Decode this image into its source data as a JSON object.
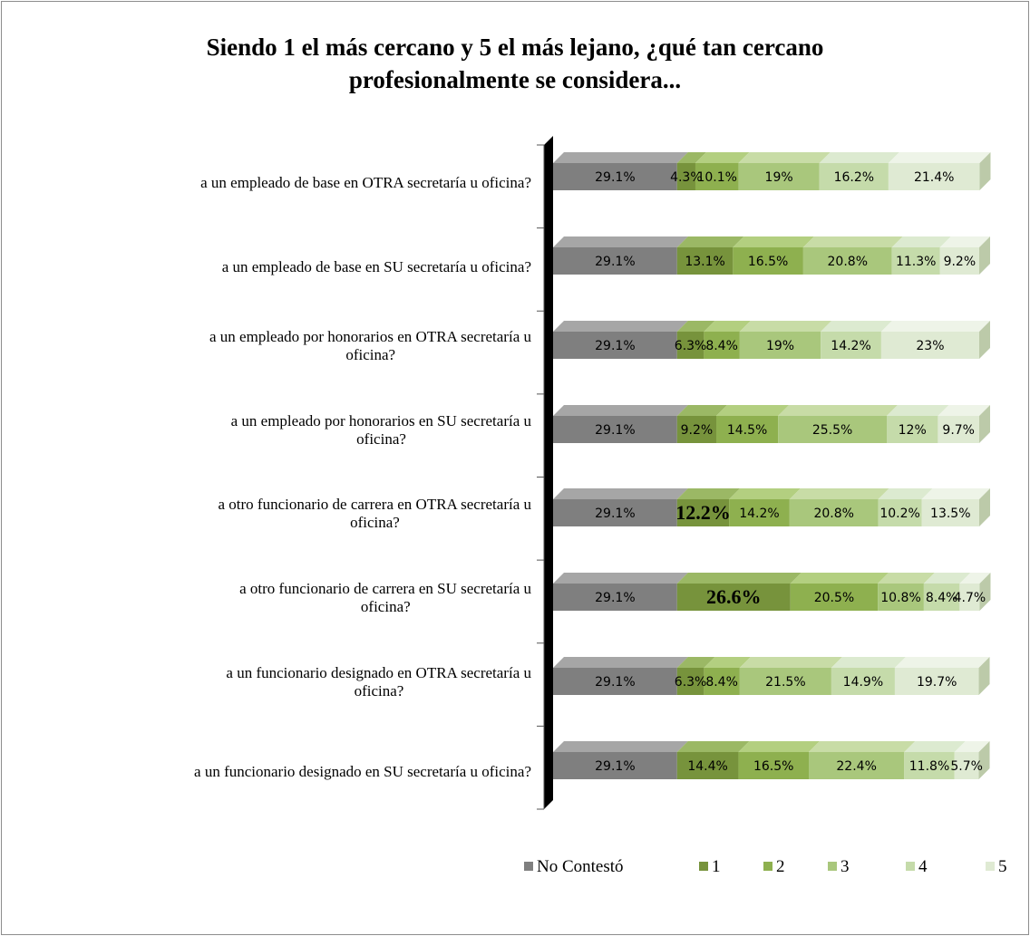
{
  "chart_data": {
    "type": "bar",
    "orientation": "horizontal",
    "stacked": true,
    "title": [
      "Siendo 1 el más cercano y 5 el más lejano, ¿qué tan cercano",
      "profesionalmente se considera..."
    ],
    "xlim": [
      0,
      100
    ],
    "unit": "%",
    "legend_position": "bottom",
    "categories": [
      "a un empleado de base en OTRA secretaría u oficina?",
      "a un empleado de base en SU secretaría u oficina?",
      "a un empleado por honorarios en OTRA secretaría u oficina?",
      "a un empleado por honorarios en SU secretaría u oficina?",
      "a otro funcionario de carrera en OTRA secretaría u oficina?",
      "a otro funcionario de carrera en SU secretaría u oficina?",
      "a un funcionario designado en OTRA secretaría u oficina?",
      "a un funcionario designado en SU secretaría u oficina?"
    ],
    "category_lines": [
      [
        "a un empleado de base en OTRA secretaría u oficina?"
      ],
      [
        "a un empleado de base en SU secretaría u oficina?"
      ],
      [
        "a un empleado por honorarios en OTRA secretaría u",
        "oficina?"
      ],
      [
        "a un empleado por honorarios en SU secretaría u",
        "oficina?"
      ],
      [
        "a otro funcionario de carrera en OTRA secretaría u",
        "oficina?"
      ],
      [
        "a otro funcionario de carrera en SU secretaría u",
        "oficina?"
      ],
      [
        "a un funcionario designado en OTRA secretaría u",
        "oficina?"
      ],
      [
        "a un funcionario designado en SU secretaría u oficina?"
      ]
    ],
    "series": [
      {
        "name": "No Contestó",
        "color": "#7f7f7f",
        "top_color": "#a6a6a6",
        "side_color": "#595959",
        "values": [
          29.1,
          29.1,
          29.1,
          29.1,
          29.1,
          29.1,
          29.1,
          29.1
        ],
        "labels": [
          "29.1%",
          "29.1%",
          "29.1%",
          "29.1%",
          "29.1%",
          "29.1%",
          "29.1%",
          "29.1%"
        ]
      },
      {
        "name": "1",
        "color": "#77933c",
        "top_color": "#9bb865",
        "side_color": "#56702a",
        "values": [
          4.3,
          13.1,
          6.3,
          9.2,
          12.2,
          26.6,
          6.3,
          14.4
        ],
        "labels": [
          "4.3%",
          "13.1%",
          "6.3%",
          "9.2%",
          "12.2%",
          "26.6%",
          "6.3%",
          "14.4%"
        ]
      },
      {
        "name": "2",
        "color": "#8eb04f",
        "top_color": "#b3cf80",
        "side_color": "#6a8a35",
        "values": [
          10.1,
          16.5,
          8.4,
          14.5,
          14.2,
          20.5,
          8.4,
          16.5
        ],
        "labels": [
          "10.1%",
          "16.5%",
          "8.4%",
          "14.5%",
          "14.2%",
          "20.5%",
          "8.4%",
          "16.5%"
        ]
      },
      {
        "name": "3",
        "color": "#a9c77c",
        "top_color": "#c8dca6",
        "side_color": "#86a35a",
        "values": [
          19,
          20.8,
          19,
          25.5,
          20.8,
          10.8,
          21.5,
          22.4
        ],
        "labels": [
          "19%",
          "20.8%",
          "19%",
          "25.5%",
          "20.8%",
          "10.8%",
          "21.5%",
          "22.4%"
        ]
      },
      {
        "name": "4",
        "color": "#c5dbaa",
        "top_color": "#dcead0",
        "side_color": "#a1b987",
        "values": [
          16.2,
          11.3,
          14.2,
          12,
          10.2,
          8.4,
          14.9,
          11.8
        ],
        "labels": [
          "16.2%",
          "11.3%",
          "14.2%",
          "12%",
          "10.2%",
          "8.4%",
          "14.9%",
          "11.8%"
        ]
      },
      {
        "name": "5",
        "color": "#dfead3",
        "top_color": "#eef4e8",
        "side_color": "#bccaa9",
        "values": [
          21.4,
          9.2,
          23,
          9.7,
          13.5,
          4.7,
          19.7,
          5.7
        ],
        "labels": [
          "21.4%",
          "9.2%",
          "23%",
          "9.7%",
          "13.5%",
          "4.7%",
          "19.7%",
          "5.7%"
        ]
      }
    ],
    "emphasized_labels": [
      [
        4,
        1
      ],
      [
        5,
        1
      ]
    ]
  }
}
